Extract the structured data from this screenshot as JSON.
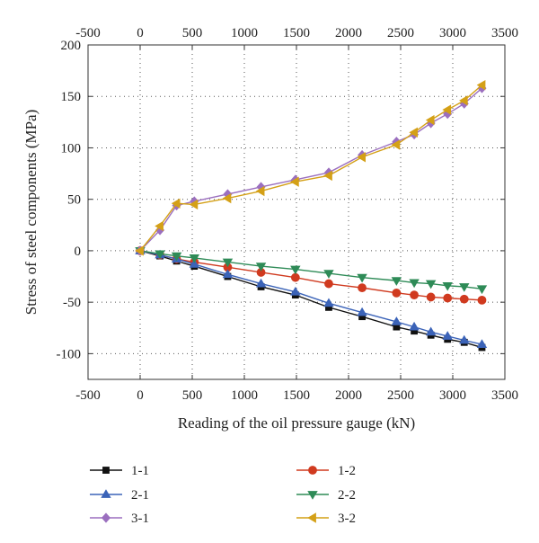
{
  "chart_data": {
    "type": "line",
    "title": "",
    "xlabel": "Reading of the oil pressure gauge (kN)",
    "ylabel": "Stress of steel components (MPa)",
    "xlim": [
      -500,
      3500
    ],
    "ylim": [
      -125,
      200
    ],
    "xticks": [
      -500,
      0,
      500,
      1000,
      1500,
      2000,
      2500,
      3000,
      3500
    ],
    "yticks": [
      -100,
      -50,
      0,
      50,
      100,
      150,
      200
    ],
    "grid": true,
    "top_axis_ticks": true,
    "legend_position": "bottom",
    "x": [
      0,
      190,
      350,
      520,
      840,
      1160,
      1490,
      1810,
      2130,
      2460,
      2630,
      2790,
      2950,
      3110,
      3280
    ],
    "series": [
      {
        "name": "1-1",
        "color": "#111111",
        "marker": "square",
        "values": [
          0,
          -5,
          -10,
          -15,
          -25,
          -35,
          -43,
          -55,
          -64,
          -74,
          -78,
          -82,
          -86,
          -89,
          -94
        ]
      },
      {
        "name": "1-2",
        "color": "#d03a1f",
        "marker": "circle",
        "values": [
          0,
          -4,
          -8,
          -11,
          -16,
          -21,
          -26,
          -32,
          -36,
          -41,
          -43,
          -45,
          -46,
          -47,
          -48
        ]
      },
      {
        "name": "2-1",
        "color": "#3b63b8",
        "marker": "triangle-up",
        "values": [
          0,
          -4,
          -8,
          -13,
          -23,
          -32,
          -40,
          -51,
          -60,
          -69,
          -74,
          -79,
          -83,
          -87,
          -91
        ]
      },
      {
        "name": "2-2",
        "color": "#2e8b57",
        "marker": "triangle-down",
        "values": [
          0,
          -3,
          -5,
          -7,
          -11,
          -15,
          -18,
          -22,
          -26,
          -29,
          -31,
          -32,
          -34,
          -35,
          -37
        ]
      },
      {
        "name": "3-1",
        "color": "#9b6fbf",
        "marker": "diamond",
        "values": [
          0,
          20,
          44,
          48,
          55,
          62,
          69,
          76,
          93,
          106,
          113,
          124,
          133,
          143,
          158
        ]
      },
      {
        "name": "3-2",
        "color": "#d4a017",
        "marker": "triangle-left",
        "values": [
          0,
          24,
          46,
          45,
          51,
          58,
          67,
          73,
          91,
          103,
          115,
          127,
          137,
          146,
          161
        ]
      }
    ]
  }
}
